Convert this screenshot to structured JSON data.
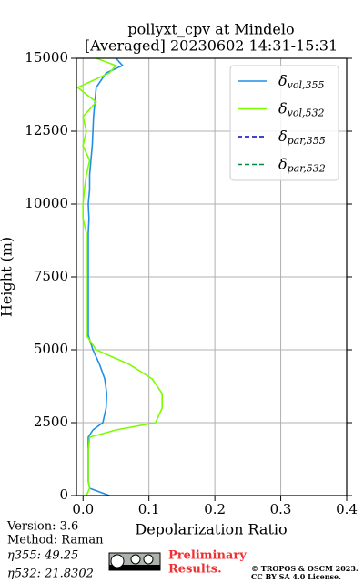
{
  "chart_data": {
    "type": "line",
    "title": "pollyxt_cpv at Mindelo",
    "subtitle": "[Averaged] 20230602 14:31-15:31",
    "x_label": "Depolarization Ratio",
    "y_label": "Height (m)",
    "heights": [
      0,
      250,
      500,
      1000,
      1500,
      2000,
      2250,
      2500,
      3000,
      3500,
      4000,
      4500,
      5000,
      5500,
      6000,
      7000,
      8000,
      9000,
      9500,
      10000,
      10500,
      11000,
      11500,
      12000,
      12500,
      13000,
      13500,
      14000,
      14500,
      14750,
      15000
    ],
    "series": [
      {
        "name": "δvol,355",
        "color": "#1f8fe6",
        "dash": "solid",
        "values": [
          0.04,
          0.01,
          0.008,
          0.008,
          0.008,
          0.008,
          0.015,
          0.03,
          0.035,
          0.036,
          0.033,
          0.025,
          0.015,
          0.008,
          0.008,
          0.008,
          0.008,
          0.008,
          0.009,
          0.008,
          0.01,
          0.01,
          0.012,
          0.014,
          0.015,
          0.016,
          0.018,
          0.02,
          0.035,
          0.06,
          0.05
        ]
      },
      {
        "name": "δvol,532",
        "color": "#7cfc00",
        "dash": "solid",
        "values": [
          0.005,
          0.01,
          0.008,
          0.008,
          0.008,
          0.01,
          0.05,
          0.11,
          0.12,
          0.12,
          0.105,
          0.07,
          0.02,
          0.005,
          0.005,
          0.005,
          0.005,
          0.005,
          0.0,
          0.0,
          0.002,
          0.005,
          0.01,
          0.0,
          0.005,
          0.0,
          0.02,
          -0.008,
          0.04,
          0.05,
          0.02
        ]
      },
      {
        "name": "δpar,355",
        "color": "#0000cd",
        "dash": "dashed",
        "values": [
          null,
          null,
          null,
          null,
          null,
          null,
          null,
          null,
          null,
          null,
          null,
          null,
          null,
          null,
          null,
          null,
          null,
          null,
          null,
          null,
          null,
          null,
          null,
          null,
          null,
          null,
          null,
          null,
          null,
          null,
          null
        ]
      },
      {
        "name": "δpar,532",
        "color": "#008b45",
        "dash": "dashed",
        "values": [
          null,
          null,
          null,
          null,
          null,
          null,
          null,
          null,
          null,
          null,
          null,
          null,
          null,
          null,
          null,
          null,
          null,
          null,
          null,
          null,
          null,
          null,
          null,
          null,
          null,
          null,
          null,
          null,
          null,
          null,
          null
        ]
      }
    ],
    "xlim": [
      -0.01,
      0.4
    ],
    "xticks": [
      {
        "value": 0,
        "label": "0.0"
      },
      {
        "value": 0.1,
        "label": "0.1"
      },
      {
        "value": 0.2,
        "label": "0.2"
      },
      {
        "value": 0.3,
        "label": "0.3"
      },
      {
        "value": 0.4,
        "label": "0.4"
      }
    ],
    "ylim": [
      0,
      15000
    ],
    "yticks": [
      0,
      2500,
      5000,
      7500,
      10000,
      12500,
      15000
    ],
    "grid": true,
    "legend": "upper right"
  },
  "footer": {
    "version": "Version: 3.6",
    "method": "Method: Raman",
    "eta355": "η355:  49.25",
    "eta532": "η532: 21.8302",
    "preliminary": "Preliminary",
    "results": "Results.",
    "copyright": "© TROPOS & OSCM 2023.",
    "license": "CC BY SA 4.0 License."
  }
}
